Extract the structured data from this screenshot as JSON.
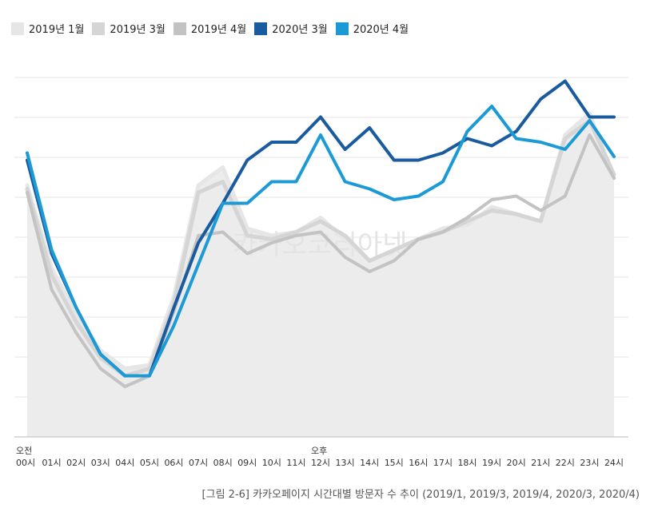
{
  "chart_data": {
    "type": "line",
    "title": "",
    "caption": "[그림 2-6] 카카오페이지 시간대별 방문자 수 추이 (2019/1, 2019/3, 2019/4, 2020/3, 2020/4)",
    "watermark": "카카오코리아넷",
    "ylim": [
      0,
      100
    ],
    "grid": true,
    "legend": "top-left",
    "am_label": "오전",
    "pm_label": "오후",
    "categories": [
      "00시",
      "01시",
      "02시",
      "03시",
      "04시",
      "05시",
      "06시",
      "07시",
      "08시",
      "09시",
      "10시",
      "11시",
      "12시",
      "13시",
      "14시",
      "15시",
      "16시",
      "17시",
      "18시",
      "19시",
      "20시",
      "21시",
      "22시",
      "23시",
      "24시"
    ],
    "series": [
      {
        "name": "2019년 1월",
        "color": "#e6e6e6",
        "values": [
          70,
          47,
          34,
          24,
          19,
          20,
          39,
          70,
          75,
          58,
          56,
          57,
          61,
          55,
          49,
          52,
          55,
          58,
          59,
          64,
          62,
          60,
          84,
          90,
          72
        ]
      },
      {
        "name": "2019년 3월",
        "color": "#d5d5d5",
        "values": [
          69,
          45,
          32,
          22,
          17,
          19,
          37,
          68,
          71,
          56,
          55,
          57,
          60,
          56,
          49,
          52,
          55,
          57,
          60,
          63,
          62,
          60,
          83,
          88,
          73
        ]
      },
      {
        "name": "2019년 4월",
        "color": "#c3c3c3",
        "values": [
          68,
          41,
          29,
          19,
          14,
          17,
          35,
          56,
          57,
          51,
          54,
          56,
          57,
          50,
          46,
          49,
          55,
          57,
          61,
          66,
          67,
          63,
          67,
          84,
          72
        ]
      },
      {
        "name": "2020년 3월",
        "color": "#1a5a9e",
        "values": [
          77,
          51,
          36,
          23,
          17,
          17,
          36,
          54,
          65,
          77,
          82,
          82,
          89,
          80,
          86,
          77,
          77,
          79,
          83,
          81,
          85,
          94,
          99,
          89,
          89
        ]
      },
      {
        "name": "2020년 4월",
        "color": "#1c9ad6",
        "values": [
          79,
          52,
          36,
          23,
          17,
          17,
          31,
          48,
          65,
          65,
          71,
          71,
          84,
          71,
          69,
          66,
          67,
          71,
          85,
          92,
          83,
          82,
          80,
          88,
          78
        ]
      }
    ]
  }
}
